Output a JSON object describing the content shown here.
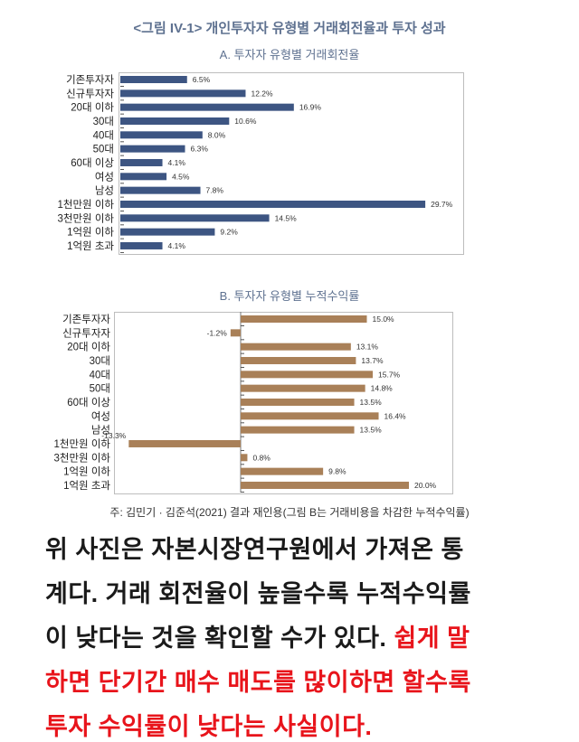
{
  "figure_title": "<그림 IV-1> 개인투자자 유형별 거래회전율과 투자 성과",
  "chart_data": [
    {
      "type": "bar",
      "orientation": "horizontal",
      "title": "A. 투자자 유형별 거래회전율",
      "categories": [
        "기존투자자",
        "신규투자자",
        "20대 이하",
        "30대",
        "40대",
        "50대",
        "60대 이상",
        "여성",
        "남성",
        "1천만원 이하",
        "3천만원 이하",
        "1억원 이하",
        "1억원 초과"
      ],
      "values": [
        6.5,
        12.2,
        16.9,
        10.6,
        8.0,
        6.3,
        4.1,
        4.5,
        7.8,
        29.7,
        14.5,
        9.2,
        4.1
      ],
      "labels": [
        "6.5%",
        "12.2%",
        "16.9%",
        "10.6%",
        "8.0%",
        "6.3%",
        "4.1%",
        "4.5%",
        "7.8%",
        "29.7%",
        "14.5%",
        "9.2%",
        "4.1%"
      ],
      "unit": "%",
      "xlim": [
        0,
        33
      ],
      "color": "#3d5582"
    },
    {
      "type": "bar",
      "orientation": "horizontal",
      "title": "B. 투자자 유형별 누적수익률",
      "categories": [
        "기존투자자",
        "신규투자자",
        "20대 이하",
        "30대",
        "40대",
        "50대",
        "60대 이상",
        "여성",
        "남성",
        "1천만원 이하",
        "3천만원 이하",
        "1억원 이하",
        "1억원 초과"
      ],
      "values": [
        15.0,
        -1.2,
        13.1,
        13.7,
        15.7,
        14.8,
        13.5,
        16.4,
        13.5,
        -13.3,
        0.8,
        9.8,
        20.0
      ],
      "labels": [
        "15.0%",
        "-1.2%",
        "13.1%",
        "13.7%",
        "15.7%",
        "14.8%",
        "13.5%",
        "16.4%",
        "13.5%",
        "-13.3%",
        "0.8%",
        "9.8%",
        "20.0%"
      ],
      "unit": "%",
      "xlim": [
        -15,
        25
      ],
      "color": "#a98058"
    }
  ],
  "footnote": "주: 김민기 · 김준석(2021) 결과 재인용(그림 B는 거래비용을 차감한 누적수익률)",
  "body": {
    "line1": "위 사진은 자본시장연구원에서 가져온 통",
    "line2": "계다. 거래 회전율이 높을수록 누적수익률",
    "line3_black": "이 낮다는 것을 확인할 수가 있다. ",
    "line3_red": "쉽게 말",
    "line4": "하면 단기간 매수 매도를 많이하면 할수록",
    "line5": "투자 수익률이 낮다는 사실이다."
  },
  "colors": {
    "highlight": "#e8141b",
    "title": "#5e7190"
  }
}
